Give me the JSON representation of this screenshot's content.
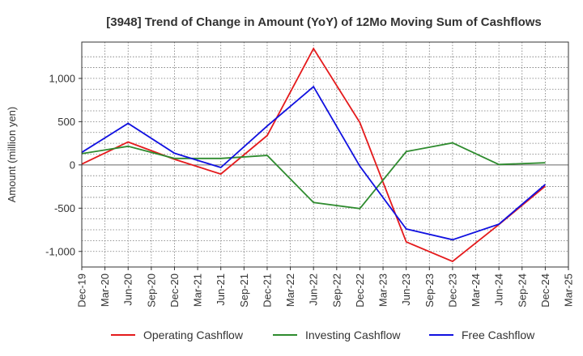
{
  "chart_data": {
    "type": "line",
    "title": "[3948]  Trend of Change in Amount (YoY) of 12Mo Moving Sum of Cashflows",
    "xlabel": "",
    "ylabel": "Amount (million yen)",
    "categories": [
      "Dec-19",
      "Mar-20",
      "Jun-20",
      "Sep-20",
      "Dec-20",
      "Mar-21",
      "Jun-21",
      "Sep-21",
      "Dec-21",
      "Mar-22",
      "Jun-22",
      "Sep-22",
      "Dec-22",
      "Mar-23",
      "Jun-23",
      "Sep-23",
      "Dec-23",
      "Mar-24",
      "Jun-24",
      "Sep-24",
      "Dec-24",
      "Mar-25"
    ],
    "yticks": [
      -1000,
      -500,
      0,
      500,
      1000
    ],
    "ytick_labels": [
      "-1,000",
      "-500",
      "0",
      "500",
      "1,000"
    ],
    "ylim": [
      -1180,
      1420
    ],
    "grid": true,
    "legend_position": "bottom",
    "series": [
      {
        "name": "Operating Cashflow",
        "color": "#e41a1c",
        "values": [
          10,
          null,
          265,
          null,
          65,
          null,
          -105,
          null,
          340,
          null,
          1345,
          null,
          490,
          null,
          -890,
          null,
          -1115,
          null,
          -690,
          null,
          -245,
          null
        ]
      },
      {
        "name": "Investing Cashflow",
        "color": "#2e8b2e",
        "values": [
          130,
          null,
          215,
          null,
          75,
          null,
          75,
          null,
          110,
          null,
          -435,
          null,
          -505,
          null,
          155,
          null,
          255,
          null,
          5,
          null,
          25,
          null
        ]
      },
      {
        "name": "Free Cashflow",
        "color": "#1010e0",
        "values": [
          145,
          null,
          480,
          null,
          135,
          null,
          -30,
          null,
          450,
          null,
          905,
          null,
          -15,
          null,
          -740,
          null,
          -865,
          null,
          -685,
          null,
          -225,
          null
        ]
      }
    ]
  }
}
